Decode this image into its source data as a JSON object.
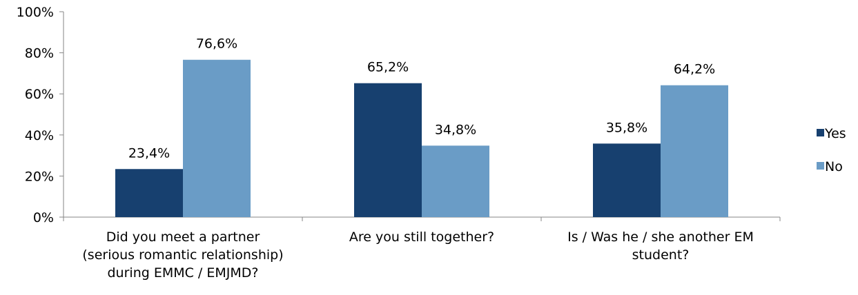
{
  "chart_data": {
    "type": "bar",
    "categories": [
      [
        "Did you meet a partner",
        "(serious romantic relationship)",
        "during EMMC / EMJMD?"
      ],
      [
        "Are you still together?"
      ],
      [
        "Is / Was he / she another EM",
        "student?"
      ]
    ],
    "series": [
      {
        "name": "Yes",
        "values": [
          23.4,
          65.2,
          35.8
        ],
        "labels": [
          "23,4%",
          "65,2%",
          "35,8%"
        ],
        "color": "#17406F"
      },
      {
        "name": "No",
        "values": [
          76.6,
          34.8,
          64.2
        ],
        "labels": [
          "76,6%",
          "34,8%",
          "64,2%"
        ],
        "color": "#6A9CC6"
      }
    ],
    "ylim": [
      0,
      100
    ],
    "yticks": [
      0,
      20,
      40,
      60,
      80,
      100
    ],
    "ytick_labels": [
      "0%",
      "20%",
      "40%",
      "60%",
      "80%",
      "100%"
    ],
    "grid": false,
    "legend": "right",
    "title": "",
    "xlabel": "",
    "ylabel": ""
  }
}
